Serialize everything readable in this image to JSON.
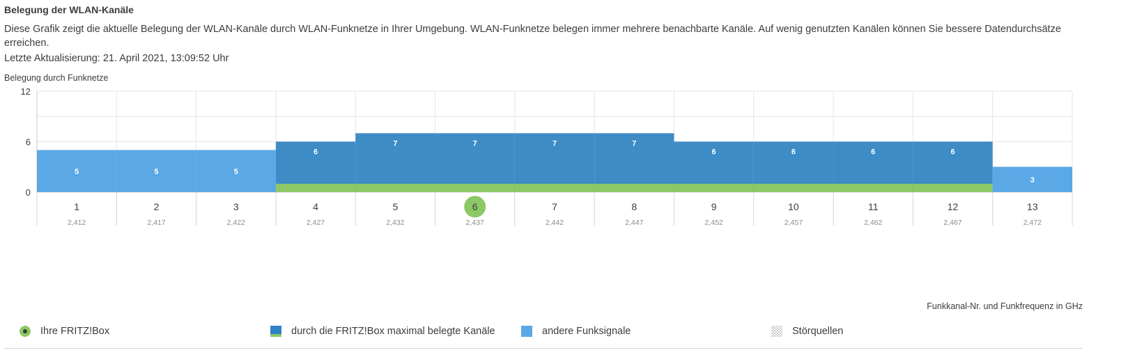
{
  "header": {
    "title": "Belegung der WLAN-Kanäle",
    "description": "Diese Grafik zeigt die aktuelle Belegung der WLAN-Kanäle durch WLAN-Funknetze in Ihrer Umgebung. WLAN-Funknetze belegen immer mehrere benachbarte Kanäle. Auf wenig genutzten Kanälen können Sie bessere Datendurchsätze erreichen.",
    "last_update": "Letzte Aktualisierung: 21. April 2021, 13:09:52 Uhr"
  },
  "chart_data": {
    "type": "bar",
    "ylabel": "Belegung durch Funknetze",
    "xlabel": "Funkkanal-Nr. und Funkfrequenz in GHz",
    "ylim": [
      0,
      12
    ],
    "yticks": [
      "0",
      "6",
      "12"
    ],
    "categories": [
      "1",
      "2",
      "3",
      "4",
      "5",
      "6",
      "7",
      "8",
      "9",
      "10",
      "11",
      "12",
      "13"
    ],
    "frequencies": [
      "2,412",
      "2,417",
      "2,422",
      "2,427",
      "2,432",
      "2,437",
      "2,442",
      "2,447",
      "2,452",
      "2,457",
      "2,462",
      "2,467",
      "2,472"
    ],
    "values": [
      5,
      5,
      5,
      6,
      7,
      7,
      7,
      7,
      6,
      6,
      6,
      6,
      3
    ],
    "fritzbox_occupied": [
      false,
      false,
      false,
      true,
      true,
      true,
      true,
      true,
      true,
      true,
      true,
      true,
      false
    ],
    "current_channel": "6",
    "grid": true,
    "colors": {
      "other": "#5aa8e6",
      "fritzbox": "#3d8cc6",
      "fritzbox_band": "#8cc866",
      "current_marker": "#8cc866"
    }
  },
  "legend": {
    "fritzbox": "Ihre FRITZ!Box",
    "max_channels": "durch die FRITZ!Box maximal belegte Kanäle",
    "other_signals": "andere Funksignale",
    "interference": "Störquellen"
  }
}
